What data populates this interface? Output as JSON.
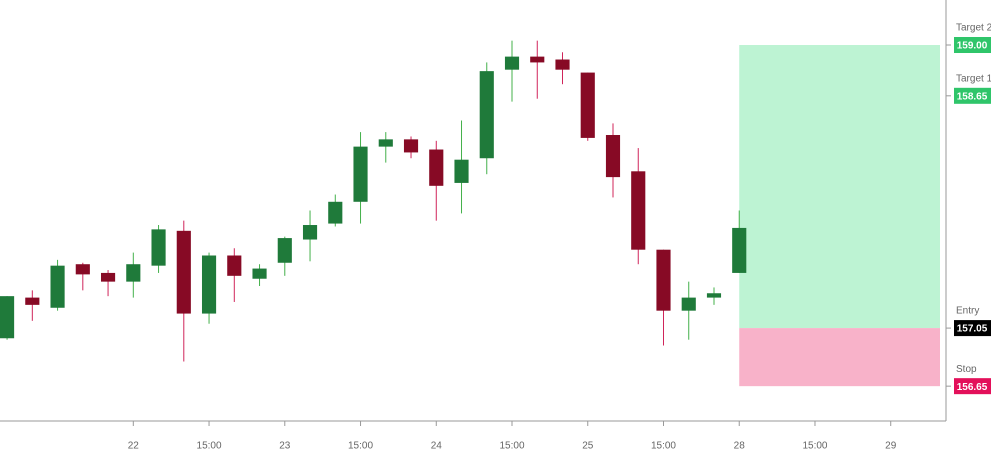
{
  "chart_data": {
    "type": "candlestick",
    "x": [
      0,
      1,
      2,
      3,
      4,
      5,
      6,
      7,
      8,
      9,
      10,
      11,
      12,
      13,
      14,
      15,
      16,
      17,
      18,
      19,
      20,
      21,
      22,
      23,
      24,
      25,
      26,
      27,
      28,
      29
    ],
    "open": [
      156.98,
      157.26,
      157.19,
      157.49,
      157.43,
      157.37,
      157.48,
      157.72,
      157.15,
      157.55,
      157.39,
      157.5,
      157.66,
      157.77,
      157.92,
      158.3,
      158.35,
      158.28,
      158.05,
      158.22,
      158.83,
      158.92,
      158.9,
      158.81,
      158.38,
      158.13,
      157.59,
      157.17,
      157.26,
      157.43
    ],
    "high": [
      157.27,
      157.31,
      157.52,
      157.5,
      157.45,
      157.57,
      157.76,
      157.79,
      157.57,
      157.6,
      157.49,
      157.68,
      157.86,
      157.97,
      158.4,
      158.4,
      158.37,
      158.34,
      158.48,
      158.88,
      159.03,
      159.03,
      158.95,
      158.81,
      158.46,
      158.29,
      157.59,
      157.37,
      157.33,
      157.86
    ],
    "low": [
      156.97,
      157.1,
      157.17,
      157.31,
      157.27,
      157.26,
      157.43,
      156.82,
      157.08,
      157.23,
      157.34,
      157.41,
      157.51,
      157.75,
      157.77,
      158.19,
      158.22,
      157.79,
      157.84,
      158.11,
      158.61,
      158.63,
      158.73,
      158.34,
      157.95,
      157.49,
      156.93,
      156.97,
      157.21,
      157.43
    ],
    "close": [
      157.27,
      157.21,
      157.48,
      157.42,
      157.37,
      157.49,
      157.73,
      157.15,
      157.55,
      157.41,
      157.46,
      157.67,
      157.76,
      157.92,
      158.3,
      158.35,
      158.26,
      158.03,
      158.21,
      158.82,
      158.92,
      158.88,
      158.83,
      158.36,
      158.09,
      157.59,
      157.17,
      157.26,
      157.29,
      157.74
    ],
    "up_color": "#1f7a3a",
    "down_color": "#870a25",
    "up_wick_color": "#43b04a",
    "down_wick_color": "#d0245a",
    "xlim": [
      -0.28,
      37.15
    ],
    "xticks": [
      {
        "value": 5,
        "label": "22"
      },
      {
        "value": 8,
        "label": "15:00"
      },
      {
        "value": 11,
        "label": "23"
      },
      {
        "value": 14,
        "label": "15:00"
      },
      {
        "value": 17,
        "label": "24"
      },
      {
        "value": 20,
        "label": "15:00"
      },
      {
        "value": 23,
        "label": "25"
      },
      {
        "value": 26,
        "label": "15:00"
      },
      {
        "value": 29,
        "label": "28"
      },
      {
        "value": 32,
        "label": "15:00"
      },
      {
        "value": 35,
        "label": "29"
      }
    ],
    "ylim": [
      156.41,
      159.31
    ],
    "levels": [
      {
        "name": "Target 2",
        "value": 159,
        "label": "159.00",
        "color": "#2fc56a"
      },
      {
        "name": "Target 1",
        "value": 158.65,
        "label": "158.65",
        "color": "#2fc56a"
      },
      {
        "name": "Entry",
        "value": 157.05,
        "label": "157.05",
        "color": "#000000"
      },
      {
        "name": "Stop",
        "value": 156.65,
        "label": "156.65",
        "color": "#e3105a"
      }
    ],
    "profit_color": "#bdf3d3",
    "loss_color": "#f8b2c9"
  }
}
